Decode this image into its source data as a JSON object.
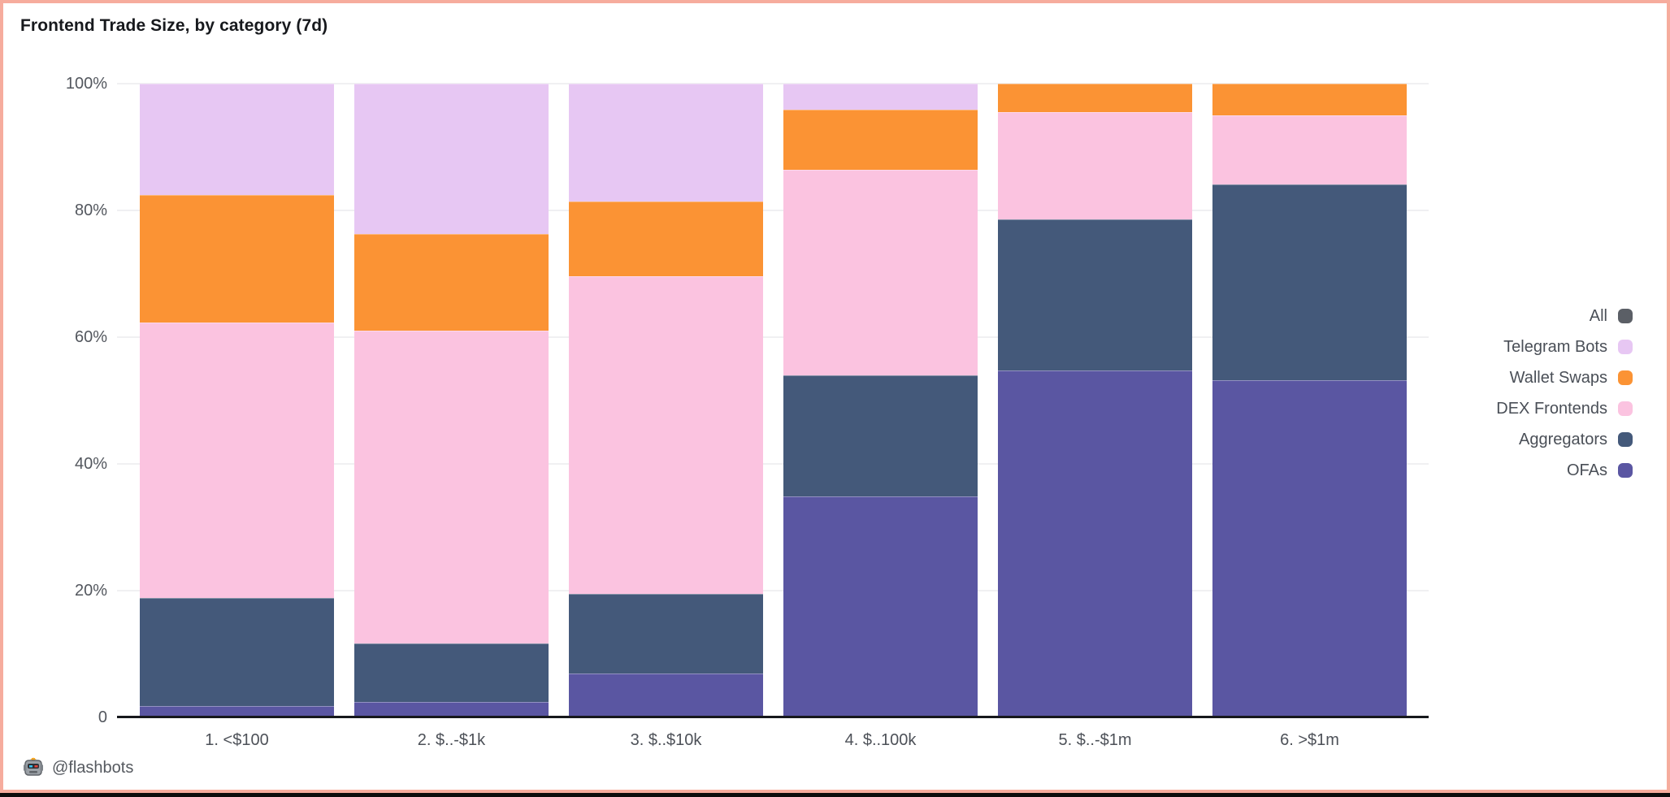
{
  "title": "Frontend Trade Size, by category (7d)",
  "footer": {
    "handle": "@flashbots"
  },
  "frame": {
    "border_color": "#f6ac9d",
    "bottom_strip_color": "#0c0c0c"
  },
  "chart_data": {
    "type": "bar",
    "stacked": true,
    "stack_unit": "percent",
    "title": "Frontend Trade Size, by category (7d)",
    "xlabel": "",
    "ylabel": "",
    "ylim": [
      0,
      100
    ],
    "grid": true,
    "legend_position": "right",
    "categories": [
      "1. <$100",
      "2. $..-$1k",
      "3. $..$10k",
      "4. $..100k",
      "5. $..-$1m",
      "6. >$1m"
    ],
    "series": [
      {
        "name": "OFAs",
        "color": "#5a56a2",
        "values": [
          1.8,
          2.4,
          6.9,
          34.9,
          54.7,
          53.2
        ]
      },
      {
        "name": "Aggregators",
        "color": "#44597a",
        "values": [
          17.0,
          9.3,
          12.6,
          19.1,
          23.9,
          30.9
        ]
      },
      {
        "name": "DEX Frontends",
        "color": "#fbc3e0",
        "values": [
          43.5,
          49.3,
          50.1,
          32.4,
          16.9,
          10.9
        ]
      },
      {
        "name": "Wallet Swaps",
        "color": "#fb9334",
        "values": [
          20.1,
          15.3,
          11.8,
          9.5,
          4.5,
          5.0
        ]
      },
      {
        "name": "Telegram Bots",
        "color": "#e7c7f3",
        "values": [
          17.6,
          23.7,
          18.6,
          4.1,
          0,
          0
        ]
      }
    ],
    "legend": [
      {
        "label": "All",
        "color": "#5b5f66"
      },
      {
        "label": "Telegram Bots",
        "color": "#e7c7f3"
      },
      {
        "label": "Wallet Swaps",
        "color": "#fb9334"
      },
      {
        "label": "DEX Frontends",
        "color": "#fbc3e0"
      },
      {
        "label": "Aggregators",
        "color": "#44597a"
      },
      {
        "label": "OFAs",
        "color": "#5a56a2"
      }
    ],
    "yticks": [
      {
        "label": "0",
        "value": 0
      },
      {
        "label": "20%",
        "value": 20
      },
      {
        "label": "40%",
        "value": 40
      },
      {
        "label": "60%",
        "value": 60
      },
      {
        "label": "80%",
        "value": 80
      },
      {
        "label": "100%",
        "value": 100
      }
    ]
  }
}
